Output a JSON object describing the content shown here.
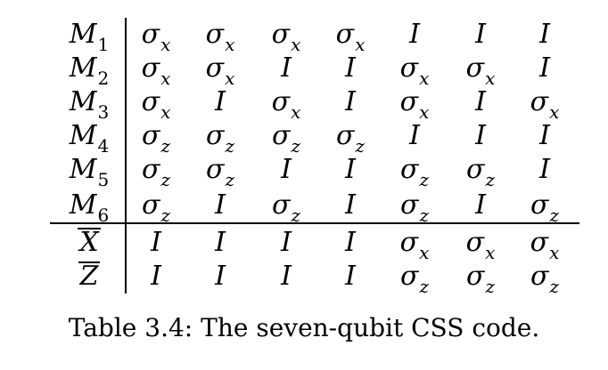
{
  "table": {
    "rows": [
      {
        "label": "M",
        "sub": "1",
        "overline": false,
        "cells": [
          {
            "base": "σ",
            "sub": "x"
          },
          {
            "base": "σ",
            "sub": "x"
          },
          {
            "base": "σ",
            "sub": "x"
          },
          {
            "base": "σ",
            "sub": "x"
          },
          {
            "base": "I",
            "sub": ""
          },
          {
            "base": "I",
            "sub": ""
          },
          {
            "base": "I",
            "sub": ""
          }
        ]
      },
      {
        "label": "M",
        "sub": "2",
        "overline": false,
        "cells": [
          {
            "base": "σ",
            "sub": "x"
          },
          {
            "base": "σ",
            "sub": "x"
          },
          {
            "base": "I",
            "sub": ""
          },
          {
            "base": "I",
            "sub": ""
          },
          {
            "base": "σ",
            "sub": "x"
          },
          {
            "base": "σ",
            "sub": "x"
          },
          {
            "base": "I",
            "sub": ""
          }
        ]
      },
      {
        "label": "M",
        "sub": "3",
        "overline": false,
        "cells": [
          {
            "base": "σ",
            "sub": "x"
          },
          {
            "base": "I",
            "sub": ""
          },
          {
            "base": "σ",
            "sub": "x"
          },
          {
            "base": "I",
            "sub": ""
          },
          {
            "base": "σ",
            "sub": "x"
          },
          {
            "base": "I",
            "sub": ""
          },
          {
            "base": "σ",
            "sub": "x"
          }
        ]
      },
      {
        "label": "M",
        "sub": "4",
        "overline": false,
        "cells": [
          {
            "base": "σ",
            "sub": "z"
          },
          {
            "base": "σ",
            "sub": "z"
          },
          {
            "base": "σ",
            "sub": "z"
          },
          {
            "base": "σ",
            "sub": "z"
          },
          {
            "base": "I",
            "sub": ""
          },
          {
            "base": "I",
            "sub": ""
          },
          {
            "base": "I",
            "sub": ""
          }
        ]
      },
      {
        "label": "M",
        "sub": "5",
        "overline": false,
        "cells": [
          {
            "base": "σ",
            "sub": "z"
          },
          {
            "base": "σ",
            "sub": "z"
          },
          {
            "base": "I",
            "sub": ""
          },
          {
            "base": "I",
            "sub": ""
          },
          {
            "base": "σ",
            "sub": "z"
          },
          {
            "base": "σ",
            "sub": "z"
          },
          {
            "base": "I",
            "sub": ""
          }
        ]
      },
      {
        "label": "M",
        "sub": "6",
        "overline": false,
        "cells": [
          {
            "base": "σ",
            "sub": "z"
          },
          {
            "base": "I",
            "sub": ""
          },
          {
            "base": "σ",
            "sub": "z"
          },
          {
            "base": "I",
            "sub": ""
          },
          {
            "base": "σ",
            "sub": "z"
          },
          {
            "base": "I",
            "sub": ""
          },
          {
            "base": "σ",
            "sub": "z"
          }
        ]
      },
      {
        "label": "X",
        "sub": "",
        "overline": true,
        "cells": [
          {
            "base": "I",
            "sub": ""
          },
          {
            "base": "I",
            "sub": ""
          },
          {
            "base": "I",
            "sub": ""
          },
          {
            "base": "I",
            "sub": ""
          },
          {
            "base": "σ",
            "sub": "x"
          },
          {
            "base": "σ",
            "sub": "x"
          },
          {
            "base": "σ",
            "sub": "x"
          }
        ]
      },
      {
        "label": "Z",
        "sub": "",
        "overline": true,
        "cells": [
          {
            "base": "I",
            "sub": ""
          },
          {
            "base": "I",
            "sub": ""
          },
          {
            "base": "I",
            "sub": ""
          },
          {
            "base": "I",
            "sub": ""
          },
          {
            "base": "σ",
            "sub": "z"
          },
          {
            "base": "σ",
            "sub": "z"
          },
          {
            "base": "σ",
            "sub": "z"
          }
        ]
      }
    ]
  },
  "caption": "Table 3.4: The seven-qubit CSS code."
}
